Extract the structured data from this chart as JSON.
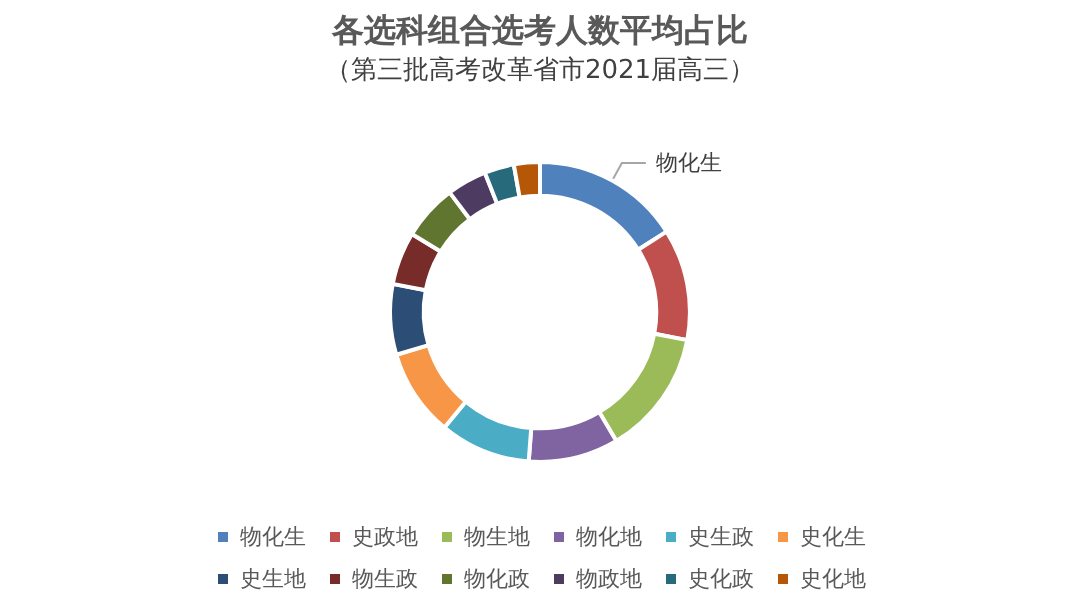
{
  "chart_data": {
    "type": "donut",
    "title": "各选科组合选考人数平均占比",
    "subtitle": "（第三批高考改革省市2021届高三）",
    "categories": [
      "物化生",
      "史政地",
      "物生地",
      "物化地",
      "史生政",
      "史化生",
      "史生地",
      "物生政",
      "物化政",
      "物政地",
      "史化政",
      "史化地"
    ],
    "values": [
      16,
      12,
      13.5,
      9.7,
      9.8,
      9.4,
      7.6,
      5.7,
      6,
      4.3,
      3.2,
      2.8
    ],
    "colors": [
      "#4f81bd",
      "#c0504d",
      "#9bbb59",
      "#8064a2",
      "#4bacc6",
      "#f79646",
      "#2c4d75",
      "#772c2a",
      "#5f7530",
      "#4d3b62",
      "#276a7c",
      "#b65708"
    ],
    "annotations": [
      {
        "text": "物化生",
        "x": "物化生"
      }
    ],
    "legend": "bottom"
  }
}
